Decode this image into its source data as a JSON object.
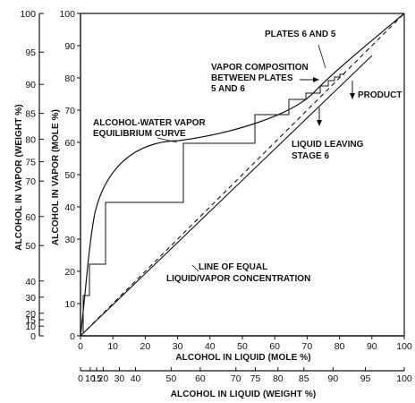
{
  "figure": {
    "left_axis_title": "ALCOHOL IN VAPOR (WEIGHT %)",
    "inner_axis_title": "ALCOHOL IN VAPOR (MOLE %)",
    "bottom_axis_title": "ALCOHOL IN LIQUID (MOLE %)",
    "weight_axis_title": "ALCOHOL IN LIQUID (WEIGHT %)",
    "mole_y_ticks": [
      "0",
      "10",
      "20",
      "30",
      "40",
      "50",
      "60",
      "70",
      "80",
      "90",
      "100"
    ],
    "mole_x_ticks": [
      "0",
      "10",
      "20",
      "30",
      "40",
      "50",
      "60",
      "70",
      "80",
      "90",
      "100"
    ],
    "weight_y_ticks": [
      "0",
      "10",
      "15",
      "20",
      "30",
      "40",
      "50",
      "60",
      "70",
      "75",
      "80",
      "85",
      "90",
      "95",
      "100"
    ],
    "weight_x_ticks": [
      "0",
      "10",
      "15",
      "20",
      "30",
      "40",
      "50",
      "60",
      "70",
      "75",
      "80",
      "85",
      "90",
      "95",
      "100"
    ],
    "annotations": {
      "plates_6_5": "PLATES 6 AND 5",
      "vapor_comp_1": "VAPOR COMPOSITION",
      "vapor_comp_2": "BETWEEN PLATES",
      "vapor_comp_3": "5 AND 6",
      "product": "PRODUCT",
      "liquid_leaving_1": "LIQUID LEAVING",
      "liquid_leaving_2": "STAGE 6",
      "eq_curve_1": "ALCOHOL-WATER VAPOR",
      "eq_curve_2": "EQUILIBRIUM CURVE",
      "line_equal_1": "LINE OF EQUAL",
      "line_equal_2": "LIQUID/VAPOR CONCENTRATION"
    }
  }
}
